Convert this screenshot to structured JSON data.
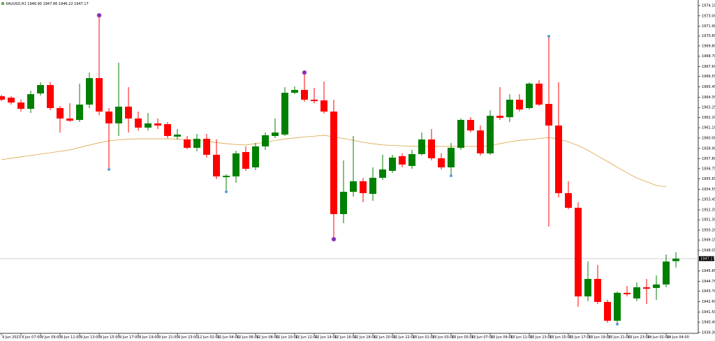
{
  "chart_data": {
    "type": "candlestick",
    "title": "XAUUSD,H1  1946.90 1947.86 1946.22 1947.17",
    "categories": [
      "9 Jun 2023",
      null,
      "9 Jun 07:00",
      null,
      "9 Jun 09:00",
      null,
      "9 Jun 11:00",
      null,
      "9 Jun 13:00",
      null,
      "9 Jun 15:00",
      null,
      "9 Jun 17:00",
      null,
      "9 Jun 19:00",
      null,
      "9 Jun 21:00",
      null,
      "9 Jun 23:00",
      null,
      "12 Jun 02:00",
      null,
      "12 Jun 04:00",
      null,
      "12 Jun 06:00",
      null,
      "12 Jun 08:00",
      null,
      "12 Jun 10:00",
      null,
      "12 Jun 12:00",
      null,
      "12 Jun 14:00",
      null,
      "12 Jun 16:00",
      null,
      "12 Jun 18:00",
      null,
      "12 Jun 20:00",
      null,
      "12 Jun 22:00",
      null,
      "13 Jun 01:00",
      null,
      "13 Jun 03:00",
      null,
      "13 Jun 05:00",
      null,
      "13 Jun 07:00",
      null,
      "13 Jun 09:00",
      null,
      "13 Jun 11:00",
      null,
      "13 Jun 13:00",
      null,
      "13 Jun 15:00",
      null,
      "13 Jun 17:00",
      null,
      "13 Jun 19:00",
      null,
      "13 Jun 21:00",
      null,
      "13 Jun 23:00",
      null,
      "14 Jun 02:00",
      null,
      "14 Jun 04:00",
      null
    ],
    "open": [
      1964.45,
      1964.3,
      1963.78,
      1963.11,
      1964.75,
      1965.64,
      1963.19,
      1962.08,
      1961.93,
      1963.56,
      1966.38,
      1962.82,
      1961.56,
      1963.34,
      1962.08,
      1961.11,
      1961.56,
      1961.48,
      1960.15,
      1959.85,
      1958.96,
      1959.92,
      1958.22,
      1955.84,
      1955.92,
      1958.51,
      1956.88,
      1959.11,
      1960.22,
      1960.37,
      1964.82,
      1965.12,
      1964.08,
      1964.01,
      1962.82,
      1951.91,
      1954.28,
      1955.4,
      1954.06,
      1955.77,
      1956.51,
      1958.07,
      1957.03,
      1958.29,
      1959.85,
      1957.85,
      1956.88,
      1958.96,
      1961.93,
      1960.81,
      1958.37,
      1962.37,
      1962.22,
      1964.08,
      1963.19,
      1965.79,
      1963.63,
      1961.33,
      1954.14,
      1952.58,
      1943.15,
      1945.01,
      1942.56,
      1940.56,
      1943.53,
      1942.93,
      1944.12,
      1944.05,
      1944.42,
      1946.9
    ],
    "high": [
      1964.6,
      1964.45,
      1964.08,
      1965.04,
      1965.93,
      1965.93,
      1963.41,
      1963.71,
      1965.79,
      1966.97,
      1973.06,
      1963.19,
      1968.01,
      1965.41,
      1962.82,
      1962.67,
      1962.08,
      1961.7,
      1960.96,
      1960.22,
      1960.44,
      1960.44,
      1959.85,
      1956.14,
      1958.66,
      1959.11,
      1959.48,
      1960.59,
      1962.08,
      1965.41,
      1965.49,
      1966.97,
      1965.34,
      1966.01,
      1964.08,
      1957.62,
      1960.22,
      1955.77,
      1956.88,
      1958.22,
      1958.22,
      1958.37,
      1958.74,
      1960.59,
      1960.96,
      1958.37,
      1959.48,
      1962.08,
      1962.22,
      1961.33,
      1962.97,
      1965.41,
      1964.67,
      1964.67,
      1965.93,
      1966.16,
      1970.83,
      1965.93,
      1955.4,
      1953.17,
      1946.86,
      1946.49,
      1942.78,
      1943.67,
      1944.27,
      1944.64,
      1945.01,
      1945.38,
      1947.61,
      1947.86
    ],
    "low": [
      1963.93,
      1963.56,
      1962.82,
      1962.67,
      1964.52,
      1962.97,
      1960.59,
      1961.7,
      1961.7,
      1963.19,
      1962.45,
      1956.66,
      1960.22,
      1960.59,
      1960.81,
      1960.81,
      1960.96,
      1960.0,
      1959.85,
      1958.81,
      1958.59,
      1957.92,
      1955.62,
      1954.28,
      1955.25,
      1956.51,
      1956.59,
      1958.74,
      1960.0,
      1960.22,
      1964.67,
      1963.86,
      1963.71,
      1962.6,
      1949.24,
      1950.95,
      1953.77,
      1953.17,
      1953.32,
      1955.55,
      1956.29,
      1956.88,
      1956.73,
      1958.14,
      1957.62,
      1956.66,
      1955.99,
      1958.74,
      1960.59,
      1958.14,
      1958.22,
      1961.93,
      1961.7,
      1962.82,
      1963.04,
      1963.41,
      1950.57,
      1953.69,
      1952.43,
      1942.04,
      1942.64,
      1942.34,
      1940.34,
      1940.19,
      1943.15,
      1942.64,
      1942.34,
      1942.78,
      1944.12,
      1946.22
    ],
    "close": [
      1964.08,
      1963.78,
      1963.11,
      1964.67,
      1965.64,
      1963.19,
      1962.08,
      1961.85,
      1963.56,
      1966.38,
      1962.82,
      1961.56,
      1963.34,
      1962.08,
      1961.11,
      1961.56,
      1961.33,
      1960.22,
      1960.37,
      1958.96,
      1959.92,
      1958.22,
      1955.92,
      1955.99,
      1958.37,
      1956.73,
      1959.11,
      1960.3,
      1960.59,
      1964.82,
      1965.12,
      1964.08,
      1963.93,
      1962.82,
      1951.91,
      1954.28,
      1955.4,
      1954.14,
      1955.77,
      1956.66,
      1957.92,
      1957.18,
      1958.29,
      1959.85,
      1957.85,
      1956.88,
      1958.96,
      1961.93,
      1960.81,
      1958.37,
      1962.37,
      1962.15,
      1964.08,
      1963.04,
      1965.79,
      1963.56,
      1961.33,
      1954.14,
      1952.58,
      1943.15,
      1945.01,
      1942.56,
      1940.56,
      1943.53,
      1943.38,
      1944.12,
      1943.97,
      1944.42,
      1946.86,
      1947.17
    ],
    "ma": [
      1957.7,
      1957.85,
      1958.0,
      1958.14,
      1958.29,
      1958.44,
      1958.59,
      1958.74,
      1959.0,
      1959.25,
      1959.5,
      1959.7,
      1959.8,
      1959.88,
      1959.92,
      1959.92,
      1959.92,
      1959.92,
      1959.9,
      1959.82,
      1959.75,
      1959.66,
      1959.52,
      1959.4,
      1959.3,
      1959.26,
      1959.4,
      1959.55,
      1959.75,
      1959.9,
      1960.02,
      1960.12,
      1960.2,
      1960.3,
      1960.12,
      1959.95,
      1959.75,
      1959.55,
      1959.4,
      1959.27,
      1959.22,
      1959.17,
      1959.13,
      1959.11,
      1959.11,
      1959.11,
      1959.11,
      1959.11,
      1959.11,
      1959.11,
      1959.2,
      1959.4,
      1959.6,
      1959.75,
      1959.85,
      1959.95,
      1960.05,
      1959.9,
      1959.6,
      1959.2,
      1958.7,
      1958.1,
      1957.5,
      1956.9,
      1956.3,
      1955.75,
      1955.35,
      1954.95,
      1954.8,
      null
    ],
    "ma_color": "#d9a545",
    "up_color": "#008000",
    "down_color": "#ff0000",
    "markers": [
      {
        "index": 10,
        "value": 1973.06,
        "color": "#7b2fb5"
      },
      {
        "index": 11,
        "value": 1956.66,
        "color": "#5b9bd5"
      },
      {
        "index": 23,
        "value": 1954.28,
        "color": "#5b9bd5"
      },
      {
        "index": 31,
        "value": 1966.97,
        "color": "#7b2fb5"
      },
      {
        "index": 34,
        "value": 1949.24,
        "color": "#7b2fb5"
      },
      {
        "index": 46,
        "value": 1955.99,
        "color": "#5b9bd5"
      },
      {
        "index": 56,
        "value": 1970.83,
        "color": "#5b9bd5"
      },
      {
        "index": 63,
        "value": 1940.19,
        "color": "#5b9bd5"
      }
    ],
    "current_price": 1947.17,
    "ylim": [
      1939.22,
      1974.69
    ],
    "yticks": [
      {
        "value": 1974.1,
        "label": "1974.10"
      },
      {
        "value": 1973,
        "label": "1973.00"
      },
      {
        "value": 1971.9,
        "label": "1971.90"
      },
      1970.85,
      {
        "value": 1969.8,
        "label": "1969.80"
      },
      {
        "value": 1968.7,
        "label": "1968.70"
      },
      {
        "value": 1967.6,
        "label": "1967.60"
      },
      1966.55,
      {
        "value": 1965.45,
        "label": "1965.45"
      },
      1964.35,
      1963.25,
      {
        "value": 1962.2,
        "label": "1962.20"
      },
      {
        "value": 1961.1,
        "label": "1961.10"
      },
      {
        "value": 1960,
        "label": "1960.00"
      },
      {
        "value": 1958.9,
        "label": "1958.90"
      },
      {
        "value": 1957.8,
        "label": "1957.80"
      },
      1956.75,
      1955.65,
      1954.55,
      1953.45,
      1952.35,
      {
        "value": 1951.3,
        "label": "1951.30"
      },
      {
        "value": 1950.2,
        "label": "1950.20"
      },
      1949.15,
      1948.05,
      1945.85,
      1944.75,
      {
        "value": 1943.7,
        "label": "1943.70"
      },
      {
        "value": 1942.6,
        "label": "1942.60"
      },
      {
        "value": 1941.5,
        "label": "1941.50"
      },
      {
        "value": 1940.4,
        "label": "1940.40"
      },
      {
        "value": 1939.3,
        "label": "1939.30"
      }
    ]
  }
}
